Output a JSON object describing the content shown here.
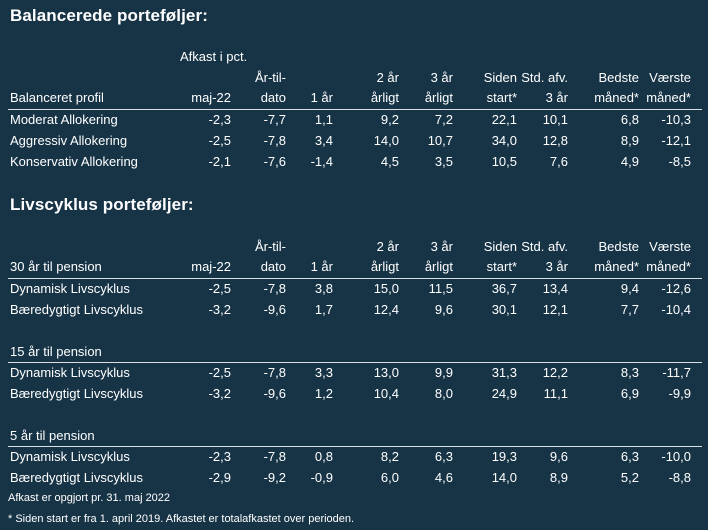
{
  "section1": {
    "title": "Balancerede porteføljer:",
    "afkast_label": "Afkast i pct.",
    "profile_header": "Balanceret profil",
    "rows": [
      {
        "name": "Moderat Allokering",
        "values": [
          "-2,3",
          "-7,7",
          "1,1",
          "9,2",
          "7,2",
          "22,1",
          "10,1",
          "6,8",
          "-10,3"
        ]
      },
      {
        "name": "Aggressiv Allokering",
        "values": [
          "-2,5",
          "-7,8",
          "3,4",
          "14,0",
          "10,7",
          "34,0",
          "12,8",
          "8,9",
          "-12,1"
        ]
      },
      {
        "name": "Konservativ Allokering",
        "values": [
          "-2,1",
          "-7,6",
          "-1,4",
          "4,5",
          "3,5",
          "10,5",
          "7,6",
          "4,9",
          "-8,5"
        ]
      }
    ]
  },
  "columns": [
    {
      "line1": "",
      "line2": "maj-22"
    },
    {
      "line1": "År-til-",
      "line2": "dato"
    },
    {
      "line1": "",
      "line2": "1 år"
    },
    {
      "line1": "2 år",
      "line2": "årligt"
    },
    {
      "line1": "3 år",
      "line2": "årligt"
    },
    {
      "line1": "Siden",
      "line2": "start*"
    },
    {
      "line1": "Std. afv.",
      "line2": "3 år"
    },
    {
      "line1": "Bedste",
      "line2": "måned*"
    },
    {
      "line1": "Værste",
      "line2": "måned*"
    }
  ],
  "section2": {
    "title": "Livscyklus porteføljer:",
    "groups": [
      {
        "label": "30 år til pension",
        "rows": [
          {
            "name": "Dynamisk Livscyklus",
            "values": [
              "-2,5",
              "-7,8",
              "3,8",
              "15,0",
              "11,5",
              "36,7",
              "13,4",
              "9,4",
              "-12,6"
            ]
          },
          {
            "name": "Bæredygtigt Livscyklus",
            "values": [
              "-3,2",
              "-9,6",
              "1,7",
              "12,4",
              "9,6",
              "30,1",
              "12,1",
              "7,7",
              "-10,4"
            ]
          }
        ]
      },
      {
        "label": "15 år til pension",
        "rows": [
          {
            "name": "Dynamisk Livscyklus",
            "values": [
              "-2,5",
              "-7,8",
              "3,3",
              "13,0",
              "9,9",
              "31,3",
              "12,2",
              "8,3",
              "-11,7"
            ]
          },
          {
            "name": "Bæredygtigt Livscyklus",
            "values": [
              "-3,2",
              "-9,6",
              "1,2",
              "10,4",
              "8,0",
              "24,9",
              "11,1",
              "6,9",
              "-9,9"
            ]
          }
        ]
      },
      {
        "label": "5 år til pension",
        "rows": [
          {
            "name": "Dynamisk Livscyklus",
            "values": [
              "-2,3",
              "-7,8",
              "0,8",
              "8,2",
              "6,3",
              "19,3",
              "9,6",
              "6,3",
              "-10,0"
            ]
          },
          {
            "name": "Bæredygtigt Livscyklus",
            "values": [
              "-2,9",
              "-9,2",
              "-0,9",
              "6,0",
              "4,6",
              "14,0",
              "8,9",
              "5,2",
              "-8,8"
            ]
          }
        ]
      }
    ]
  },
  "footer": {
    "line1": "Afkast er opgjort pr. 31. maj 2022",
    "line2": "* Siden start er fra 1. april 2019. Afkastet er totalafkastet over perioden."
  },
  "colors": {
    "background": "#173447",
    "text": "#ffffff",
    "rule": "#d9dfe4"
  }
}
